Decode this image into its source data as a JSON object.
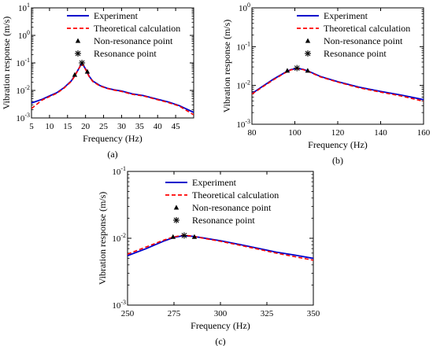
{
  "colors": {
    "experiment": "#0000cc",
    "theory": "#ff0000",
    "marker": "#000000"
  },
  "chart_data": [
    {
      "type": "line",
      "panel_label": "(a)",
      "xlabel": "Frequency (Hz)",
      "ylabel": "Vibration response (m/s)",
      "xlim": [
        5,
        50
      ],
      "ylim": [
        0.001,
        10
      ],
      "yscale": "log",
      "xticks": [
        5,
        10,
        15,
        20,
        25,
        30,
        35,
        40,
        45
      ],
      "xtick_labels": [
        "5",
        "10",
        "15",
        "20",
        "25",
        "30",
        "35",
        "40",
        "45"
      ],
      "yticks": [
        0.001,
        0.01,
        0.1,
        1,
        10
      ],
      "ytick_labels": [
        [
          "10",
          "-3"
        ],
        [
          "10",
          "-2"
        ],
        [
          "10",
          "-1"
        ],
        [
          "10",
          "0"
        ],
        [
          "10",
          "1"
        ]
      ],
      "legend_position": "top-right",
      "legend": [
        "Experiment",
        "Theoretical calculation",
        "Non-resonance point",
        "Resonance point"
      ],
      "series": [
        {
          "name": "Experiment",
          "style": "solid",
          "x": [
            5,
            8,
            10,
            12,
            14,
            16,
            17,
            18,
            19,
            20,
            21,
            22,
            24,
            26,
            28,
            30,
            33,
            36,
            40,
            43,
            46,
            50
          ],
          "y": [
            0.0035,
            0.0048,
            0.0063,
            0.0082,
            0.0125,
            0.022,
            0.034,
            0.058,
            0.1,
            0.06,
            0.033,
            0.022,
            0.015,
            0.012,
            0.0105,
            0.0095,
            0.0075,
            0.0065,
            0.0048,
            0.0038,
            0.0028,
            0.0016
          ]
        },
        {
          "name": "Theoretical calculation",
          "style": "dashed",
          "x": [
            5,
            8,
            10,
            12,
            14,
            16,
            17,
            18,
            19,
            20,
            21,
            22,
            24,
            26,
            28,
            30,
            33,
            36,
            40,
            43,
            46,
            50
          ],
          "y": [
            0.0022,
            0.0045,
            0.006,
            0.0078,
            0.012,
            0.021,
            0.033,
            0.058,
            0.098,
            0.058,
            0.032,
            0.021,
            0.0145,
            0.0118,
            0.0102,
            0.0092,
            0.0072,
            0.0063,
            0.0046,
            0.0036,
            0.0027,
            0.0013
          ]
        },
        {
          "name": "Non-resonance point",
          "marker": "triangle",
          "x": [
            17,
            20.5
          ],
          "y": [
            0.037,
            0.048
          ]
        },
        {
          "name": "Resonance point",
          "marker": "asterisk",
          "x": [
            19
          ],
          "y": [
            0.1
          ]
        }
      ]
    },
    {
      "type": "line",
      "panel_label": "(b)",
      "xlabel": "Frequency (Hz)",
      "ylabel": "Vibration response (m/s)",
      "xlim": [
        80,
        160
      ],
      "ylim": [
        0.001,
        1
      ],
      "yscale": "log",
      "xticks": [
        80,
        100,
        120,
        140,
        160
      ],
      "xtick_labels": [
        "80",
        "100",
        "120",
        "140",
        "160"
      ],
      "yticks": [
        0.001,
        0.01,
        0.1,
        1
      ],
      "ytick_labels": [
        [
          "10",
          "-3"
        ],
        [
          "10",
          "-2"
        ],
        [
          "10",
          "-1"
        ],
        [
          "10",
          "0"
        ]
      ],
      "legend_position": "top-right",
      "legend": [
        "Experiment",
        "Theoretical calculation",
        "Non-resonance point",
        "Resonance point"
      ],
      "series": [
        {
          "name": "Experiment",
          "style": "solid",
          "x": [
            80,
            85,
            90,
            95,
            98,
            101,
            104,
            107,
            112,
            120,
            130,
            140,
            150,
            160
          ],
          "y": [
            0.0062,
            0.0095,
            0.0145,
            0.021,
            0.0255,
            0.0275,
            0.026,
            0.0225,
            0.017,
            0.0125,
            0.009,
            0.007,
            0.0056,
            0.0043
          ]
        },
        {
          "name": "Theoretical calculation",
          "style": "dashed",
          "x": [
            80,
            85,
            90,
            95,
            98,
            101,
            104,
            107,
            112,
            120,
            130,
            140,
            150,
            160
          ],
          "y": [
            0.006,
            0.0092,
            0.014,
            0.0205,
            0.025,
            0.027,
            0.0255,
            0.022,
            0.0165,
            0.0122,
            0.0087,
            0.0067,
            0.0053,
            0.0039
          ]
        },
        {
          "name": "Non-resonance point",
          "marker": "triangle",
          "x": [
            96.5,
            106
          ],
          "y": [
            0.024,
            0.024
          ]
        },
        {
          "name": "Resonance point",
          "marker": "asterisk",
          "x": [
            101
          ],
          "y": [
            0.028
          ]
        }
      ]
    },
    {
      "type": "line",
      "panel_label": "(c)",
      "xlabel": "Frequency (Hz)",
      "ylabel": "Vibration response (m/s)",
      "xlim": [
        250,
        350
      ],
      "ylim": [
        0.001,
        0.1
      ],
      "yscale": "log",
      "xticks": [
        250,
        275,
        300,
        325,
        350
      ],
      "xtick_labels": [
        "250",
        "275",
        "300",
        "325",
        "350"
      ],
      "yticks": [
        0.001,
        0.01,
        0.1
      ],
      "ytick_labels": [
        [
          "10",
          "-3"
        ],
        [
          "10",
          "-2"
        ],
        [
          "10",
          "-1"
        ]
      ],
      "legend_position": "top-right",
      "legend": [
        "Experiment",
        "Theoretical calculation",
        "Non-resonance point",
        "Resonance point"
      ],
      "series": [
        {
          "name": "Experiment",
          "style": "solid",
          "x": [
            250,
            260,
            270,
            275,
            280,
            285,
            290,
            300,
            310,
            320,
            330,
            340,
            350
          ],
          "y": [
            0.0055,
            0.007,
            0.0092,
            0.0103,
            0.0109,
            0.0107,
            0.0102,
            0.0092,
            0.0081,
            0.0071,
            0.0062,
            0.0056,
            0.005
          ]
        },
        {
          "name": "Theoretical calculation",
          "style": "dashed",
          "x": [
            250,
            260,
            270,
            275,
            280,
            285,
            290,
            300,
            310,
            320,
            330,
            340,
            350
          ],
          "y": [
            0.0058,
            0.0074,
            0.0095,
            0.0105,
            0.0111,
            0.0108,
            0.0101,
            0.009,
            0.0079,
            0.0069,
            0.006,
            0.0053,
            0.0047
          ]
        },
        {
          "name": "Non-resonance point",
          "marker": "triangle",
          "x": [
            274.5,
            286
          ],
          "y": [
            0.0105,
            0.0105
          ]
        },
        {
          "name": "Resonance point",
          "marker": "asterisk",
          "x": [
            280.5
          ],
          "y": [
            0.011
          ]
        }
      ]
    }
  ]
}
